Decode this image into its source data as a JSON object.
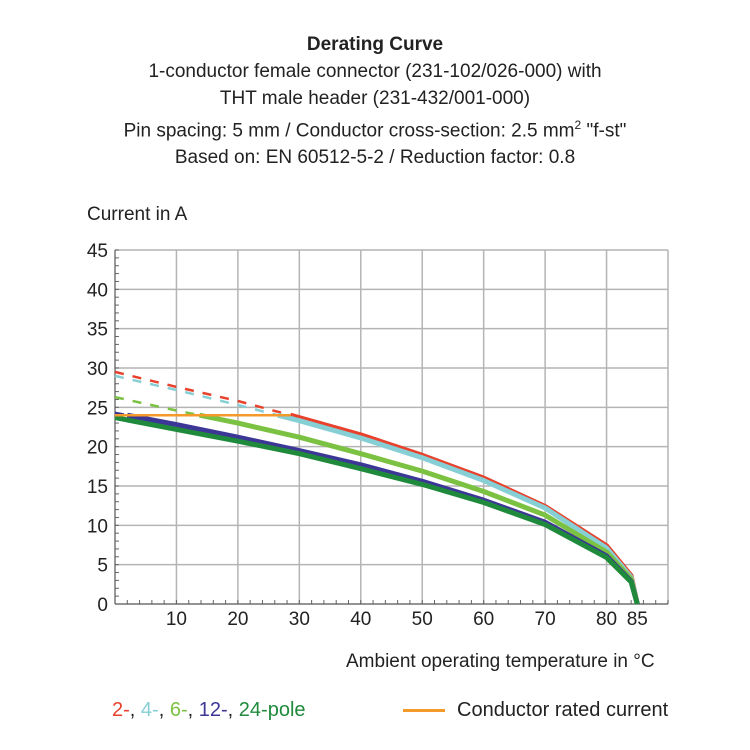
{
  "chart_data": {
    "type": "line",
    "title": "Derating Curve",
    "subtitle_lines": [
      "1-conductor female connector (231-102/026-000) with",
      "THT male header (231-432/001-000)",
      "Pin spacing: 5 mm / Conductor cross-section: 2.5 mm",
      "Based on: EN 60512-5-2 / Reduction factor: 0.8"
    ],
    "subtitle_sup": "2",
    "subtitle_tail": " \"f-st\"",
    "ylabel": "Current in A",
    "xlabel": "Ambient operating temperature in °C",
    "xlim": [
      0,
      90
    ],
    "ylim": [
      0,
      45
    ],
    "xticks": [
      10,
      20,
      30,
      40,
      50,
      60,
      70,
      80,
      85
    ],
    "yticks": [
      0,
      5,
      10,
      15,
      20,
      25,
      30,
      35,
      40,
      45
    ],
    "grid": true,
    "x": [
      0,
      10,
      20,
      30,
      40,
      50,
      60,
      70,
      80,
      84,
      85
    ],
    "series": [
      {
        "name": "2-",
        "color": "#e8412c",
        "values": [
          29.5,
          27.6,
          25.8,
          23.7,
          21.5,
          18.9,
          16.0,
          12.4,
          7.4,
          3.6,
          0
        ]
      },
      {
        "name": "4-",
        "color": "#86cfd4",
        "values": [
          29.0,
          27.2,
          25.3,
          23.3,
          21.1,
          18.6,
          15.7,
          12.2,
          7.1,
          3.4,
          0
        ]
      },
      {
        "name": "6-",
        "color": "#7cc242",
        "values": [
          26.3,
          24.6,
          23.0,
          21.2,
          19.1,
          16.9,
          14.3,
          11.3,
          6.6,
          3.2,
          0
        ]
      },
      {
        "name": "12-",
        "color": "#3c3797",
        "values": [
          24.3,
          22.8,
          21.2,
          19.5,
          17.7,
          15.6,
          13.2,
          10.4,
          6.1,
          2.9,
          0
        ]
      },
      {
        "name": "24-",
        "color": "#1f8a3c",
        "values": [
          23.7,
          22.2,
          20.7,
          19.1,
          17.2,
          15.2,
          12.9,
          10.1,
          5.9,
          2.8,
          0
        ]
      }
    ],
    "rated_current": {
      "name": "Conductor rated current",
      "color": "#f39a2b",
      "value": 24
    },
    "legend": {
      "pole_suffix": "pole",
      "separator": ", ",
      "rated_label": "Conductor rated current"
    }
  }
}
